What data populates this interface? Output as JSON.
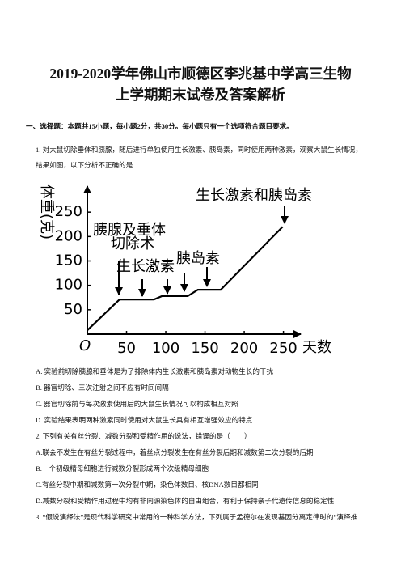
{
  "header": {
    "title": [
      "2019-2020学年佛山市顺德区李兆基中学高三生物",
      "上学期期末试卷及答案解析"
    ]
  },
  "section": "一、选择题：本题共15小题，每小题2分，共30分。每小题只有一个选项符合题目要求。",
  "questions": [
    {
      "stem": "1. 对大鼠切除垂体和胰腺，随后进行单独使用生长激素、胰岛素，同时使用两种激素，观察大鼠生长情况，结果如图，以下分析不正确的是",
      "options": [
        "A. 实验前切除胰腺和垂体是为了排除体内生长激素和胰岛素对动物生长的干扰",
        "B. 器官切除、三次注射之间不应有时间间隔",
        "C. 器官切除前与每次激素使用后的大鼠生长情况可以构成相互对照",
        "D. 实验结果表明两种激素同时使用对大鼠生长具有相互增强效应的特点"
      ]
    },
    {
      "stem": "2. 下列有关有丝分裂、减数分裂和受精作用的说法，错误的是（　　）",
      "options": [
        "A.联会不发生在有丝分裂过程中，着丝点分裂发生在有丝分裂后期和减数第二次分裂的后期",
        "B.一个初级精母细胞进行减数分裂形成两个次级精母细胞",
        "C.有丝分裂中期和减数第一次分裂中期，染色体数目、核DNA数目都相同",
        "D.减数分裂和受精作用过程中均有非同源染色体的自由组合，有利于保持亲子代遗传信息的稳定性"
      ]
    },
    {
      "stem": "3. “假说演绎法”是现代科学研究中常用的一种科学方法，下列属于孟德尔在发现基因分离定律时的“演绎推",
      "options": []
    }
  ],
  "chart_data": {
    "type": "line",
    "y_label": "体重(克)",
    "x_label": "天数",
    "origin_label": "O",
    "x": [
      0,
      41,
      85,
      95,
      128,
      141,
      170,
      249
    ],
    "values": [
      8,
      71,
      71,
      78,
      78,
      91,
      91,
      220
    ],
    "color": "#000000",
    "xlim": [
      0,
      270
    ],
    "ylim": [
      0,
      300
    ],
    "xticks": [
      50,
      100,
      150,
      200,
      250
    ],
    "yticks": [
      50,
      100,
      150,
      200,
      250
    ],
    "annotations": [
      "胰腺及垂体",
      "切除术",
      "生长激素",
      "胰岛素",
      "生长激素和胰岛素"
    ]
  }
}
